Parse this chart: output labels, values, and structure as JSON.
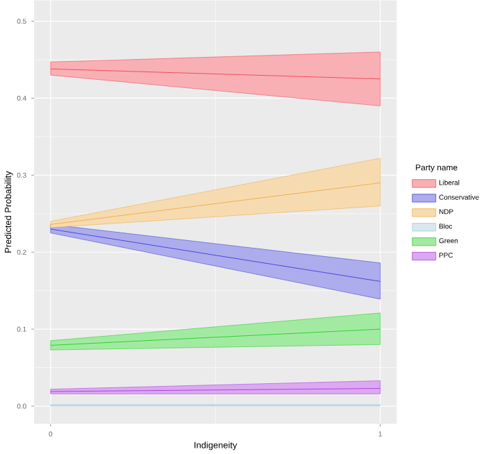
{
  "chart_data": {
    "type": "line",
    "xlabel": "Indigeneity",
    "ylabel": "Predicted Probability",
    "legend_title": "Party name",
    "x": [
      0,
      1
    ],
    "series": [
      {
        "name": "Liberal",
        "color": "#F0505A",
        "values": [
          0.438,
          0.425
        ],
        "lower": [
          0.43,
          0.39
        ],
        "upper": [
          0.447,
          0.46
        ]
      },
      {
        "name": "Conservative",
        "color": "#4848D8",
        "values": [
          0.23,
          0.162
        ],
        "lower": [
          0.225,
          0.139
        ],
        "upper": [
          0.236,
          0.186
        ]
      },
      {
        "name": "NDP",
        "color": "#EDB050",
        "values": [
          0.236,
          0.29
        ],
        "lower": [
          0.232,
          0.26
        ],
        "upper": [
          0.24,
          0.322
        ]
      },
      {
        "name": "Bloc",
        "color": "#A9CCDA",
        "values": [
          0.001,
          0.001
        ],
        "lower": [
          0,
          0
        ],
        "upper": [
          0.002,
          0.002
        ]
      },
      {
        "name": "Green",
        "color": "#30D030",
        "values": [
          0.079,
          0.1
        ],
        "lower": [
          0.073,
          0.08
        ],
        "upper": [
          0.085,
          0.121
        ]
      },
      {
        "name": "PPC",
        "color": "#B040E0",
        "values": [
          0.019,
          0.023
        ],
        "lower": [
          0.016,
          0.016
        ],
        "upper": [
          0.022,
          0.033
        ]
      }
    ],
    "xlim": [
      -0.05,
      1.05
    ],
    "ylim": [
      -0.023,
      0.527
    ],
    "xticks": [
      0,
      1
    ],
    "yticks": [
      {
        "value": 0,
        "label": "0.0"
      },
      {
        "value": 0.1,
        "label": "0.1"
      },
      {
        "value": 0.2,
        "label": "0.2"
      },
      {
        "value": 0.3,
        "label": "0.3"
      },
      {
        "value": 0.4,
        "label": "0.4"
      },
      {
        "value": 0.5,
        "label": "0.5"
      }
    ],
    "grid": true,
    "legend": "right"
  }
}
